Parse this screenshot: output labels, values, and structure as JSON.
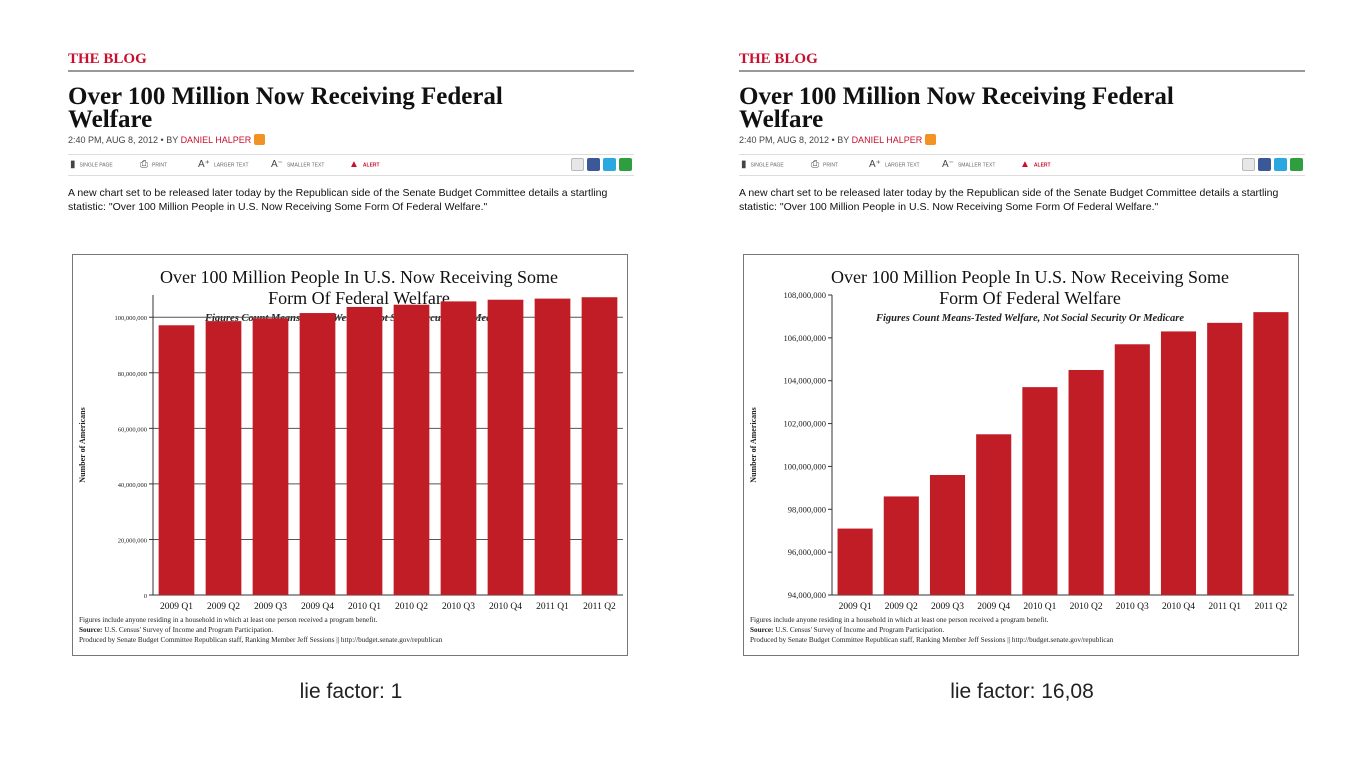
{
  "panels": [
    {
      "kicker": "THE BLOG",
      "headline": "Over 100 Million Now Receiving Federal Welfare",
      "byline_prefix": "2:40 PM, AUG 8, 2012 • BY ",
      "author": "DANIEL HALPER",
      "toolbar": {
        "single_page": "Single page",
        "print": "Print",
        "larger_text": "Larger text",
        "smaller_text": "Smaller text",
        "alert": "Alert"
      },
      "intro": "A new chart set to be released later today by the Republican side of the Senate Budget Committee details a startling statistic: \"Over 100 Million People in U.S. Now Receiving Some Form Of Federal Welfare.\"",
      "caption": "lie factor: 1"
    },
    {
      "kicker": "THE BLOG",
      "headline": "Over 100 Million Now Receiving Federal Welfare",
      "byline_prefix": "2:40 PM, AUG 8, 2012 • BY ",
      "author": "DANIEL HALPER",
      "toolbar": {
        "single_page": "Single page",
        "print": "Print",
        "larger_text": "Larger text",
        "smaller_text": "Smaller text",
        "alert": "Alert"
      },
      "intro": "A new chart set to be released later today by the Republican side of the Senate Budget Committee details a startling statistic: \"Over 100 Million People in U.S. Now Receiving Some Form Of Federal Welfare.\"",
      "caption": "lie factor: 16,08"
    }
  ],
  "chart_data": [
    {
      "type": "bar",
      "title": "Over 100 Million People In U.S. Now Receiving Some Form Of Federal Welfare",
      "title_lines": [
        "Over 100 Million People In U.S. Now Receiving Some",
        "Form Of Federal Welfare"
      ],
      "subtitle": "Figures Count Means-Tested Welfare, Not Social Security Or Medicare",
      "ylabel": "Number of Americans",
      "xlabel": "",
      "categories": [
        "2009 Q1",
        "2009 Q2",
        "2009 Q3",
        "2009 Q4",
        "2010 Q1",
        "2010 Q2",
        "2010 Q3",
        "2010 Q4",
        "2011 Q1",
        "2011 Q2"
      ],
      "values": [
        97100000,
        98600000,
        99600000,
        101500000,
        103700000,
        104500000,
        105700000,
        106300000,
        106700000,
        107200000
      ],
      "ylim": [
        0,
        108000000
      ],
      "yticks": [
        0,
        20000000,
        40000000,
        60000000,
        80000000,
        100000000
      ],
      "ytick_labels": [
        "0",
        "20,000,000",
        "40,000,000",
        "60,000,000",
        "80,000,000",
        "100,000,000"
      ],
      "grid": true,
      "bar_color": "#c01d27",
      "footnotes": [
        {
          "bold": "",
          "text": "Figures include anyone residing in a household in which at least one person received a program benefit."
        },
        {
          "bold": "Source:",
          "text": " U.S. Census' Survey of Income and Program Participation."
        },
        {
          "bold": "",
          "text": "Produced by Senate Budget Committee Republican staff, Ranking Member Jeff Sessions || http://budget.senate.gov/republican"
        }
      ]
    },
    {
      "type": "bar",
      "title": "Over 100 Million People In U.S. Now Receiving Some Form Of Federal Welfare",
      "title_lines": [
        "Over 100 Million People In U.S. Now Receiving Some",
        "Form Of Federal Welfare"
      ],
      "subtitle": "Figures Count Means-Tested Welfare, Not Social Security Or Medicare",
      "ylabel": "Number of Americans",
      "xlabel": "",
      "categories": [
        "2009 Q1",
        "2009 Q2",
        "2009 Q3",
        "2009 Q4",
        "2010 Q1",
        "2010 Q2",
        "2010 Q3",
        "2010 Q4",
        "2011 Q1",
        "2011 Q2"
      ],
      "values": [
        97100000,
        98600000,
        99600000,
        101500000,
        103700000,
        104500000,
        105700000,
        106300000,
        106700000,
        107200000
      ],
      "ylim": [
        94000000,
        108000000
      ],
      "yticks": [
        94000000,
        96000000,
        98000000,
        100000000,
        102000000,
        104000000,
        106000000,
        108000000
      ],
      "ytick_labels": [
        "94,000,000",
        "96,000,000",
        "98,000,000",
        "100,000,000",
        "102,000,000",
        "104,000,000",
        "106,000,000",
        "108,000,000"
      ],
      "grid": false,
      "bar_color": "#c01d27",
      "footnotes": [
        {
          "bold": "",
          "text": "Figures include anyone residing in a household in which at least one person received a program benefit."
        },
        {
          "bold": "Source:",
          "text": " U.S. Census' Survey of Income and Program Participation."
        },
        {
          "bold": "",
          "text": "Produced by Senate Budget Committee Republican staff, Ranking Member Jeff Sessions || http://budget.senate.gov/republican"
        }
      ]
    }
  ]
}
